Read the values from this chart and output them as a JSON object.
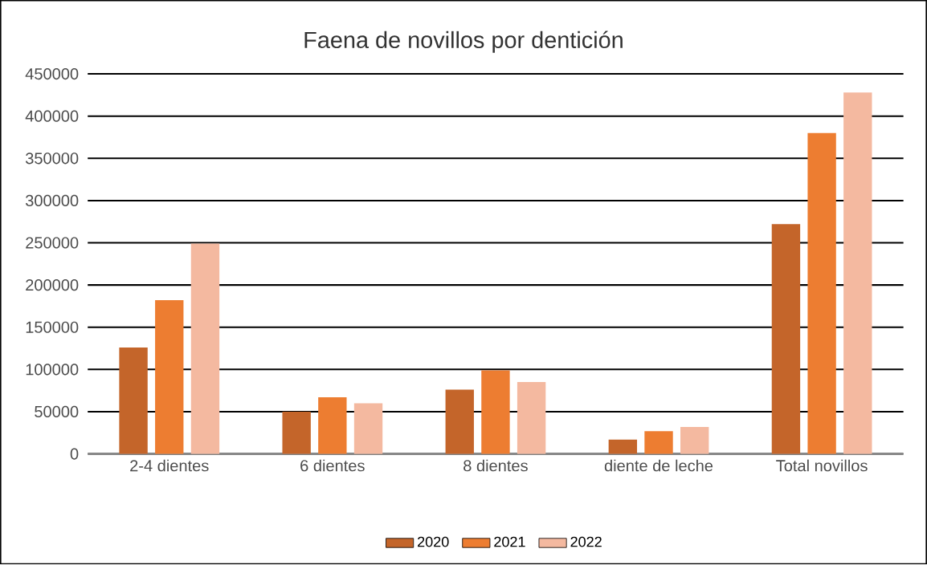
{
  "chart_data": {
    "type": "bar",
    "title": "Faena de novillos  por dentición",
    "categories": [
      "2-4 dientes",
      "6 dientes",
      "8 dientes",
      "diente de leche",
      "Total novillos"
    ],
    "series": [
      {
        "name": "2020",
        "color": "#c4652a",
        "values": [
          126000,
          50000,
          76000,
          17000,
          272000
        ]
      },
      {
        "name": "2021",
        "color": "#ed7d31",
        "values": [
          182000,
          67000,
          99000,
          27000,
          380000
        ]
      },
      {
        "name": "2022",
        "color": "#f4b9a0",
        "values": [
          249000,
          60000,
          85000,
          32000,
          428000
        ]
      }
    ],
    "ylim": [
      0,
      450000
    ],
    "yticks": [
      0,
      50000,
      100000,
      150000,
      200000,
      250000,
      300000,
      350000,
      400000,
      450000
    ],
    "grid": "y",
    "legend": "bottom"
  }
}
